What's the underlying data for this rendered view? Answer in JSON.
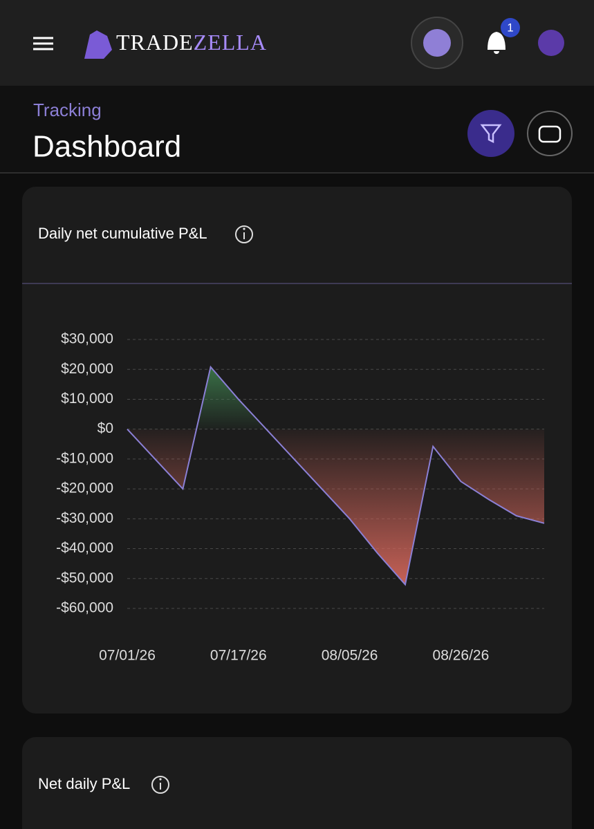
{
  "header": {
    "logo_parts": [
      "TRADE",
      "ZELLA"
    ],
    "notification_count": "1"
  },
  "page": {
    "breadcrumb": "Tracking",
    "title": "Dashboard"
  },
  "chart_data": {
    "type": "area",
    "title": "Daily net cumulative P&L",
    "categories": [
      "07/01/26",
      null,
      null,
      null,
      "07/17/26",
      null,
      null,
      null,
      "08/05/26",
      null,
      null,
      null,
      "08/26/26",
      null,
      null,
      null
    ],
    "values": [
      0,
      -10000,
      -20000,
      20800,
      10000,
      0,
      -10000,
      -20000,
      -30000,
      -41500,
      -52000,
      -5800,
      -17500,
      -23500,
      -29000,
      -31500
    ],
    "color": "#8b80d6",
    "positive_color": "#3d7a4c",
    "negative_color": "#d0655a",
    "ylim": [
      -60000,
      30000
    ],
    "yticks": [
      {
        "value": 30000,
        "label": "$30,000"
      },
      {
        "value": 20000,
        "label": "$20,000"
      },
      {
        "value": 10000,
        "label": "$10,000"
      },
      {
        "value": 0,
        "label": "$0"
      },
      {
        "value": -10000,
        "label": "-$10,000"
      },
      {
        "value": -20000,
        "label": "-$20,000"
      },
      {
        "value": -30000,
        "label": "-$30,000"
      },
      {
        "value": -40000,
        "label": "-$40,000"
      },
      {
        "value": -50000,
        "label": "-$50,000"
      },
      {
        "value": -60000,
        "label": "-$60,000"
      }
    ],
    "grid": true
  },
  "second_card": {
    "title": "Net daily P&L"
  }
}
